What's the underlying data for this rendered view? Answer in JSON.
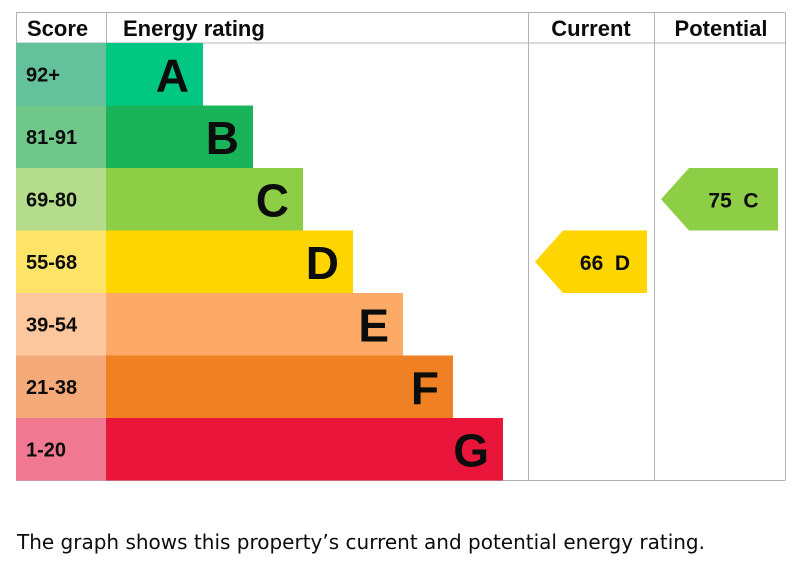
{
  "chart_data": {
    "type": "bar",
    "headers": {
      "score": "Score",
      "rating": "Energy rating",
      "current": "Current",
      "potential": "Potential"
    },
    "bands": [
      {
        "score": "92+",
        "letter": "A",
        "score_color": "#63c29c",
        "band_color": "#00c781"
      },
      {
        "score": "81-91",
        "letter": "B",
        "score_color": "#6fc78a",
        "band_color": "#19b459"
      },
      {
        "score": "69-80",
        "letter": "C",
        "score_color": "#b4dc8a",
        "band_color": "#8dce46"
      },
      {
        "score": "55-68",
        "letter": "D",
        "score_color": "#fde468",
        "band_color": "#ffd500"
      },
      {
        "score": "39-54",
        "letter": "E",
        "score_color": "#fdc79e",
        "band_color": "#fcaa65"
      },
      {
        "score": "21-38",
        "letter": "F",
        "score_color": "#f3a978",
        "band_color": "#ef8023"
      },
      {
        "score": "1-20",
        "letter": "G",
        "score_color": "#f07890",
        "band_color": "#e9153b"
      }
    ],
    "current": {
      "value": 66,
      "letter": "D",
      "text": "66  D",
      "color": "#ffd500"
    },
    "potential": {
      "value": 75,
      "letter": "C",
      "text": "75  C",
      "color": "#8dce46"
    }
  },
  "caption": "The graph shows this property’s current and potential energy rating."
}
